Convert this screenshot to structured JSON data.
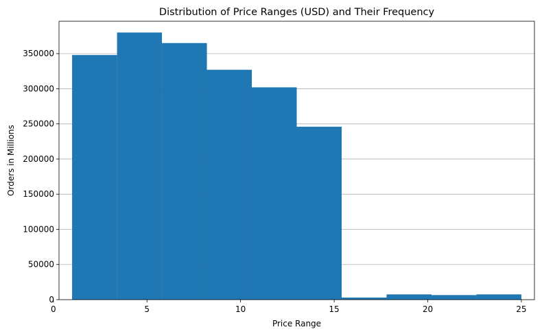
{
  "chart_data": {
    "type": "bar",
    "title": "Distribution of Price Ranges (USD) and Their Frequency",
    "xlabel": "Price Range",
    "ylabel": "Orders in Millions",
    "xlim": [
      0.3,
      25.7
    ],
    "ylim": [
      0,
      396000
    ],
    "x_ticks": [
      0,
      5,
      10,
      15,
      20,
      25
    ],
    "y_ticks": [
      0,
      50000,
      100000,
      150000,
      200000,
      250000,
      300000,
      350000
    ],
    "bin_edges": [
      1.0,
      3.4,
      5.8,
      8.2,
      10.6,
      13.0,
      15.4,
      17.8,
      20.2,
      22.6,
      25.0
    ],
    "values": [
      348000,
      380000,
      365000,
      327000,
      302000,
      246000,
      3000,
      7500,
      6500,
      7500
    ],
    "grid": "y-axis only",
    "colors": {
      "bar": "#1f77b4",
      "grid": "#b0b0b0"
    }
  }
}
